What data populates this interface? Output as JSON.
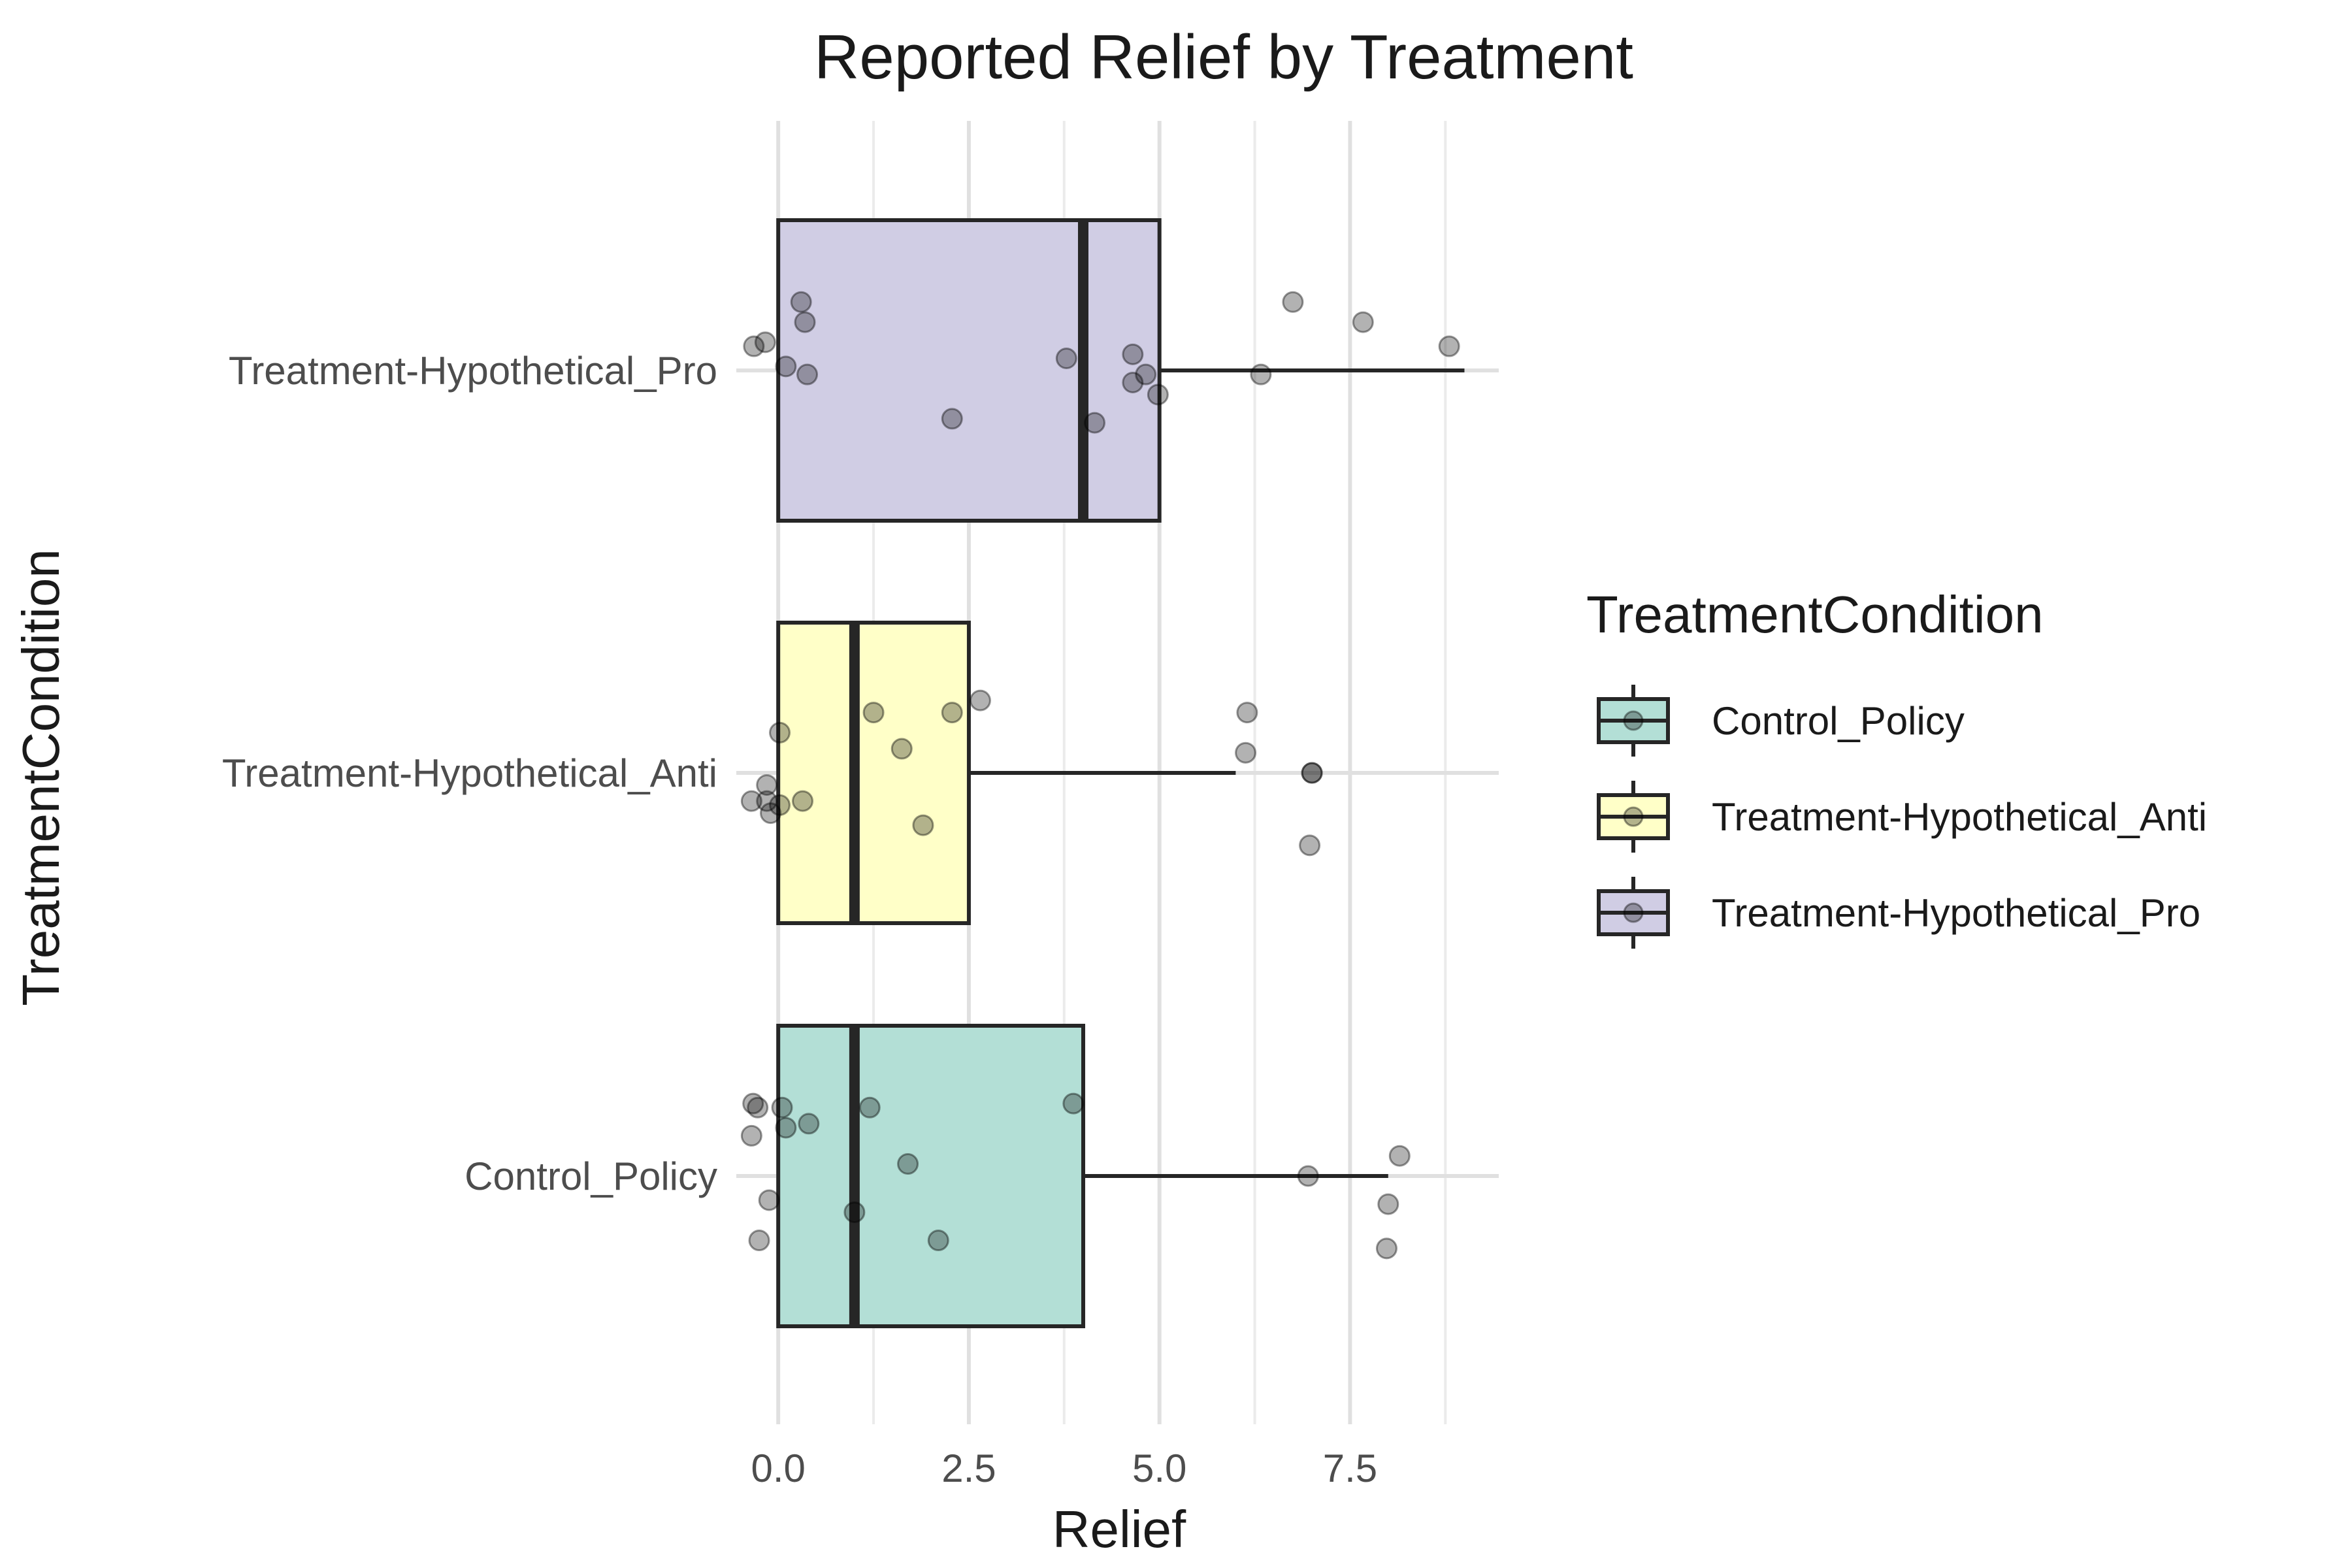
{
  "chart_data": {
    "type": "box",
    "title": "Reported Relief by Treatment",
    "xlabel": "Relief",
    "ylabel": "TreatmentCondition",
    "xlim": [
      -0.55,
      9.45
    ],
    "xticks": [
      0,
      2.5,
      5,
      7.5
    ],
    "xtick_labels": [
      "0.0",
      "2.5",
      "5.0",
      "7.5"
    ],
    "grid": true,
    "categories": [
      "Control_Policy",
      "Treatment-Hypothetical_Anti",
      "Treatment-Hypothetical_Pro"
    ],
    "legend": {
      "title": "TreatmentCondition",
      "placement": "right",
      "entries": [
        "Control_Policy",
        "Treatment-Hypothetical_Anti",
        "Treatment-Hypothetical_Pro"
      ]
    },
    "series": [
      {
        "name": "Control_Policy",
        "color": "#b3dfd6",
        "box": {
          "q1": 0,
          "median": 1,
          "q3": 4,
          "whisker_low": 0,
          "whisker_high": 8
        },
        "points": [
          {
            "x": -0.33,
            "y": 0.18
          },
          {
            "x": -0.27,
            "y": 0.17
          },
          {
            "x": 0.05,
            "y": 0.17
          },
          {
            "x": 1.2,
            "y": 0.17
          },
          {
            "x": 3.87,
            "y": 0.18
          },
          {
            "x": 0.4,
            "y": 0.13
          },
          {
            "x": 0.1,
            "y": 0.12
          },
          {
            "x": -0.35,
            "y": 0.1
          },
          {
            "x": 1.7,
            "y": 0.03
          },
          {
            "x": 8.15,
            "y": 0.05
          },
          {
            "x": 6.95,
            "y": 0.0
          },
          {
            "x": -0.12,
            "y": -0.06
          },
          {
            "x": 1.0,
            "y": -0.09
          },
          {
            "x": 8.0,
            "y": -0.07
          },
          {
            "x": -0.25,
            "y": -0.16
          },
          {
            "x": 2.1,
            "y": -0.16
          },
          {
            "x": 7.98,
            "y": -0.18
          }
        ]
      },
      {
        "name": "Treatment-Hypothetical_Anti",
        "color": "#ffffc8",
        "box": {
          "q1": 0,
          "median": 1,
          "q3": 2.5,
          "whisker_low": 0,
          "whisker_high": 6
        },
        "points": [
          {
            "x": 2.65,
            "y": 0.18
          },
          {
            "x": 1.25,
            "y": 0.15
          },
          {
            "x": 2.28,
            "y": 0.15
          },
          {
            "x": 6.15,
            "y": 0.15
          },
          {
            "x": 0.02,
            "y": 0.1
          },
          {
            "x": 1.62,
            "y": 0.06
          },
          {
            "x": 6.13,
            "y": 0.05
          },
          {
            "x": 7.0,
            "y": 0.0
          },
          {
            "x": 7.0,
            "y": 0.0
          },
          {
            "x": -0.15,
            "y": -0.03
          },
          {
            "x": -0.35,
            "y": -0.07
          },
          {
            "x": -0.15,
            "y": -0.07
          },
          {
            "x": 0.32,
            "y": -0.07
          },
          {
            "x": 0.02,
            "y": -0.08
          },
          {
            "x": -0.1,
            "y": -0.1
          },
          {
            "x": 1.9,
            "y": -0.13
          },
          {
            "x": 6.97,
            "y": -0.18
          }
        ]
      },
      {
        "name": "Treatment-Hypothetical_Pro",
        "color": "#d0cde4",
        "box": {
          "q1": 0,
          "median": 4,
          "q3": 5,
          "whisker_low": 0,
          "whisker_high": 9
        },
        "points": [
          {
            "x": 0.3,
            "y": 0.17
          },
          {
            "x": 6.75,
            "y": 0.17
          },
          {
            "x": 0.35,
            "y": 0.12
          },
          {
            "x": 7.67,
            "y": 0.12
          },
          {
            "x": -0.17,
            "y": 0.07
          },
          {
            "x": -0.32,
            "y": 0.06
          },
          {
            "x": 8.8,
            "y": 0.06
          },
          {
            "x": 3.78,
            "y": 0.03
          },
          {
            "x": 4.65,
            "y": 0.04
          },
          {
            "x": 0.1,
            "y": 0.01
          },
          {
            "x": 0.38,
            "y": -0.01
          },
          {
            "x": 4.82,
            "y": -0.01
          },
          {
            "x": 6.33,
            "y": -0.01
          },
          {
            "x": 4.65,
            "y": -0.03
          },
          {
            "x": 4.98,
            "y": -0.06
          },
          {
            "x": 2.28,
            "y": -0.12
          },
          {
            "x": 4.15,
            "y": -0.13
          }
        ]
      }
    ]
  }
}
